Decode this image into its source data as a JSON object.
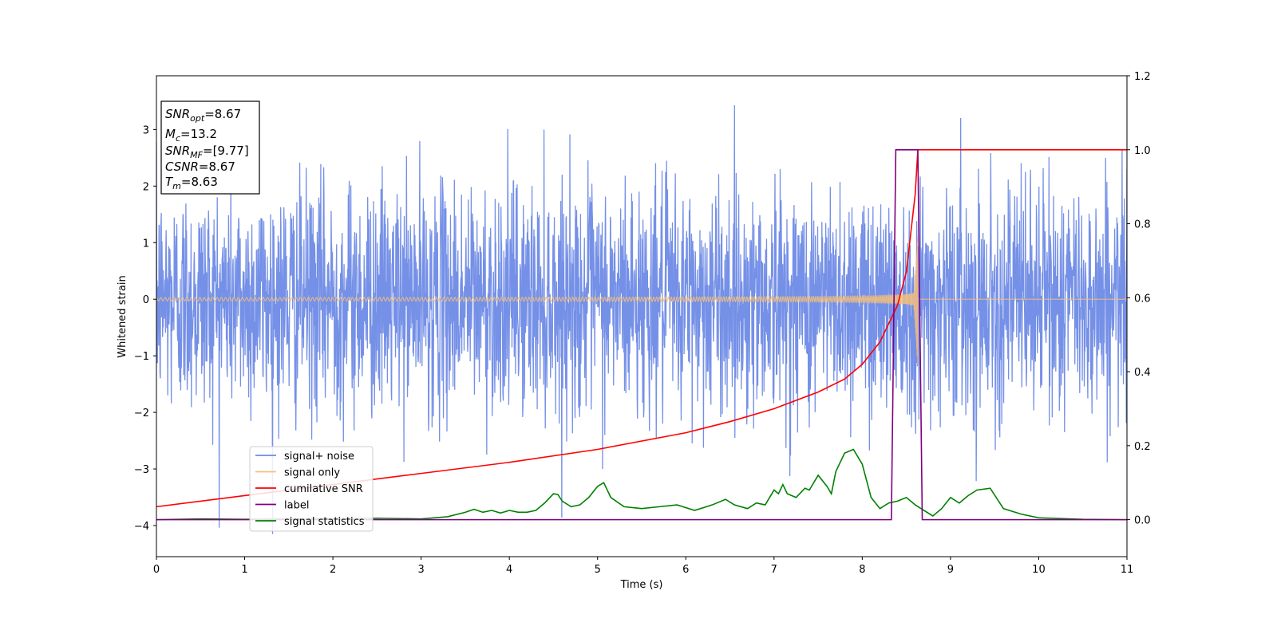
{
  "chart_data": {
    "type": "line",
    "xlabel": "Time (s)",
    "ylabel": "Whitened strain",
    "xlim": [
      0,
      11
    ],
    "ylim_left": [
      -4.55,
      3.95
    ],
    "ylim_right": [
      -0.1,
      1.2
    ],
    "x_ticks": [
      0,
      1,
      2,
      3,
      4,
      5,
      6,
      7,
      8,
      9,
      10,
      11
    ],
    "y_ticks_left": [
      -4,
      -3,
      -2,
      -1,
      0,
      1,
      2,
      3
    ],
    "y_ticks_right": [
      0.0,
      0.2,
      0.4,
      0.6,
      0.8,
      1.0,
      1.2
    ],
    "grid": false,
    "legend": "lower-left",
    "annotation": {
      "lines": [
        {
          "base": "SNR",
          "sub": "opt",
          "rest": "=8.67"
        },
        {
          "base": "M",
          "sub": "c",
          "rest": "=13.2"
        },
        {
          "base": "SNR",
          "sub": "MF",
          "rest": "=[9.77]"
        },
        {
          "base": "CSNR",
          "sub": "",
          "rest": "=8.67"
        },
        {
          "base": "T",
          "sub": "m",
          "rest": "=8.63"
        }
      ]
    },
    "series": [
      {
        "name": "signal+ noise",
        "axis": "left",
        "color": "#6e8ae6",
        "description_values": {
          "noise_std": 1.0,
          "peak_max": 3.6,
          "peak_min": -4.15
        }
      },
      {
        "name": "signal only",
        "axis": "left",
        "color": "#f5c07a",
        "chirp": {
          "merger_time": 8.63,
          "peak_amplitude": 1.3
        }
      },
      {
        "name": "cumilative SNR",
        "axis": "right",
        "color": "#ff0000",
        "x": [
          0,
          1,
          2,
          3,
          4,
          5,
          6,
          6.5,
          7,
          7.5,
          7.8,
          8.0,
          8.2,
          8.4,
          8.5,
          8.6,
          8.63,
          11
        ],
        "y": [
          0.035,
          0.065,
          0.095,
          0.125,
          0.155,
          0.19,
          0.235,
          0.265,
          0.3,
          0.345,
          0.38,
          0.42,
          0.48,
          0.58,
          0.67,
          0.88,
          1.0,
          1.0
        ]
      },
      {
        "name": "label",
        "axis": "right",
        "color": "#800080",
        "x": [
          0,
          8.33,
          8.38,
          8.63,
          8.68,
          11
        ],
        "y": [
          0,
          0,
          1.0,
          1.0,
          0,
          0
        ]
      },
      {
        "name": "signal statistics",
        "axis": "right",
        "color": "#008000",
        "x": [
          0,
          0.5,
          1,
          1.5,
          2,
          2.5,
          3,
          3.3,
          3.5,
          3.6,
          3.7,
          3.8,
          3.9,
          4.0,
          4.1,
          4.2,
          4.3,
          4.4,
          4.5,
          4.55,
          4.6,
          4.7,
          4.8,
          4.9,
          5.0,
          5.07,
          5.15,
          5.3,
          5.5,
          5.7,
          5.9,
          6.1,
          6.3,
          6.45,
          6.55,
          6.7,
          6.8,
          6.9,
          7.0,
          7.05,
          7.1,
          7.15,
          7.25,
          7.35,
          7.4,
          7.5,
          7.6,
          7.65,
          7.7,
          7.8,
          7.9,
          8.0,
          8.1,
          8.2,
          8.3,
          8.4,
          8.5,
          8.6,
          8.7,
          8.8,
          8.9,
          9.0,
          9.1,
          9.2,
          9.3,
          9.45,
          9.6,
          9.8,
          10.0,
          10.5,
          11
        ],
        "y": [
          0.0,
          0.002,
          0.001,
          0.002,
          0.003,
          0.004,
          0.002,
          0.008,
          0.02,
          0.028,
          0.02,
          0.025,
          0.018,
          0.025,
          0.02,
          0.02,
          0.025,
          0.045,
          0.07,
          0.068,
          0.05,
          0.035,
          0.04,
          0.06,
          0.09,
          0.1,
          0.06,
          0.035,
          0.03,
          0.035,
          0.04,
          0.025,
          0.04,
          0.055,
          0.04,
          0.03,
          0.045,
          0.04,
          0.08,
          0.07,
          0.095,
          0.07,
          0.06,
          0.085,
          0.08,
          0.12,
          0.09,
          0.07,
          0.13,
          0.18,
          0.19,
          0.15,
          0.06,
          0.03,
          0.045,
          0.05,
          0.06,
          0.04,
          0.025,
          0.01,
          0.03,
          0.06,
          0.045,
          0.065,
          0.08,
          0.085,
          0.03,
          0.015,
          0.005,
          0.001,
          0.0
        ]
      }
    ]
  }
}
